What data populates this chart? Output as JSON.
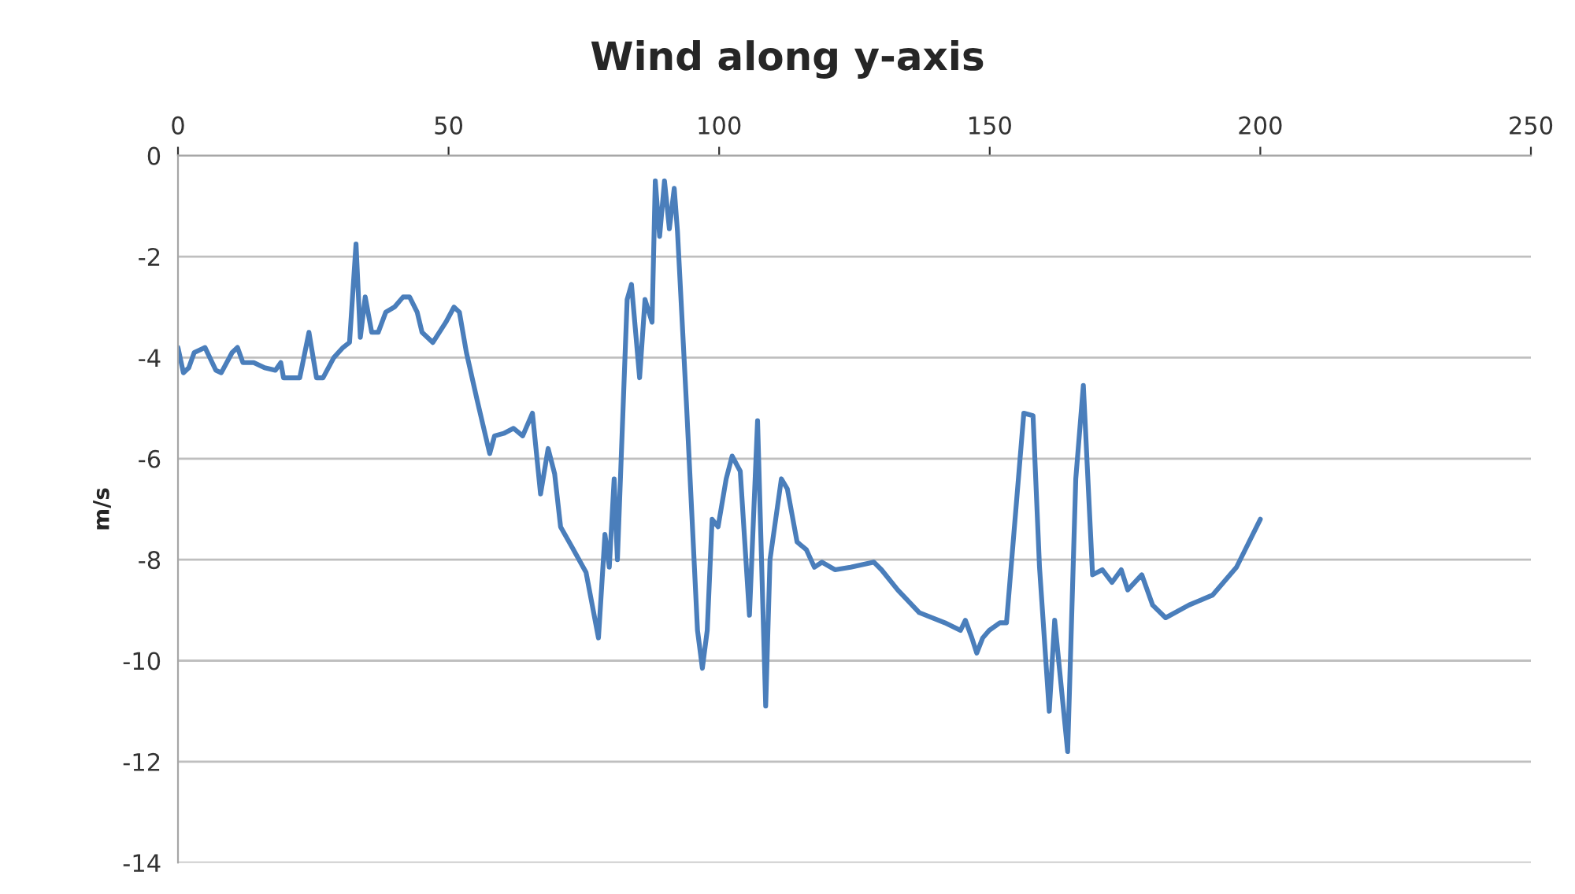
{
  "chart_data": {
    "type": "line",
    "title": "Wind along y-axis",
    "ylabel": "m/s",
    "xlim": [
      0,
      250
    ],
    "xticks": [
      0,
      50,
      100,
      150,
      200,
      250
    ],
    "ylim": [
      -14,
      0
    ],
    "yticks": [
      0,
      -2,
      -4,
      -6,
      -8,
      -10,
      -12,
      -14
    ],
    "grid": "y",
    "marker": "none",
    "line_style": "solid",
    "series": [
      {
        "color": "#4a7ebb",
        "x": [
          0,
          1,
          2,
          3,
          5,
          7,
          8,
          10,
          11,
          12,
          14,
          16,
          18,
          19,
          19.5,
          22.5,
          24.2,
          25.6,
          26.8,
          28.8,
          30.5,
          31.7,
          32.9,
          33.7,
          34.6,
          35.8,
          37,
          38.4,
          40,
          41.6,
          42.8,
          44.2,
          45.1,
          47.1,
          49.5,
          51,
          52,
          53.3,
          55.3,
          57.6,
          58.5,
          60.2,
          62,
          63.7,
          65.5,
          67,
          68.4,
          69.6,
          70.7,
          72.8,
          75.4,
          77.7,
          78.9,
          79.7,
          80.6,
          81.2,
          83,
          83.8,
          85.3,
          86.3,
          87.6,
          88.2,
          89,
          89.9,
          90.8,
          91.7,
          92.3,
          94,
          96,
          96.9,
          97.8,
          98.7,
          99.8,
          101.3,
          102.4,
          103.9,
          105.6,
          107.1,
          108.6,
          109.4,
          111.5,
          112.6,
          114.4,
          116.1,
          117.6,
          119,
          121.4,
          124.3,
          128.6,
          130,
          133,
          137,
          141.7,
          144.6,
          145.5,
          146.7,
          147.6,
          148.7,
          149.9,
          151.9,
          153.1,
          156.3,
          158,
          159.2,
          161,
          162,
          164.4,
          165.9,
          167.3,
          169,
          170.8,
          172.6,
          174.3,
          175.5,
          178.1,
          180.1,
          182.5,
          186.8,
          191.2,
          195.6,
          200
        ],
        "values": [
          -3.8,
          -4.3,
          -4.2,
          -3.9,
          -3.8,
          -4.25,
          -4.3,
          -3.9,
          -3.8,
          -4.1,
          -4.1,
          -4.2,
          -4.25,
          -4.1,
          -4.4,
          -4.4,
          -3.5,
          -4.4,
          -4.4,
          -4.0,
          -3.8,
          -3.7,
          -1.75,
          -3.6,
          -2.8,
          -3.5,
          -3.5,
          -3.1,
          -3.0,
          -2.8,
          -2.8,
          -3.1,
          -3.5,
          -3.7,
          -3.3,
          -3.0,
          -3.1,
          -3.9,
          -4.85,
          -5.9,
          -5.55,
          -5.5,
          -5.4,
          -5.55,
          -5.1,
          -6.7,
          -5.8,
          -6.3,
          -7.35,
          -7.75,
          -8.25,
          -9.55,
          -7.5,
          -8.15,
          -6.4,
          -8.0,
          -2.85,
          -2.55,
          -4.4,
          -2.85,
          -3.3,
          -0.5,
          -1.6,
          -0.5,
          -1.45,
          -0.65,
          -1.5,
          -5.0,
          -9.4,
          -10.15,
          -9.4,
          -7.2,
          -7.35,
          -6.4,
          -5.95,
          -6.25,
          -9.1,
          -5.25,
          -10.9,
          -8.0,
          -6.4,
          -6.6,
          -7.65,
          -7.8,
          -8.15,
          -8.05,
          -8.2,
          -8.15,
          -8.05,
          -8.2,
          -8.6,
          -9.05,
          -9.25,
          -9.4,
          -9.2,
          -9.55,
          -9.85,
          -9.55,
          -9.4,
          -9.25,
          -9.25,
          -5.1,
          -5.15,
          -8.15,
          -11.0,
          -9.2,
          -11.8,
          -6.4,
          -4.55,
          -8.3,
          -8.2,
          -8.45,
          -8.2,
          -8.6,
          -8.3,
          -8.9,
          -9.15,
          -8.9,
          -8.7,
          -8.15,
          -7.2
        ]
      }
    ]
  }
}
